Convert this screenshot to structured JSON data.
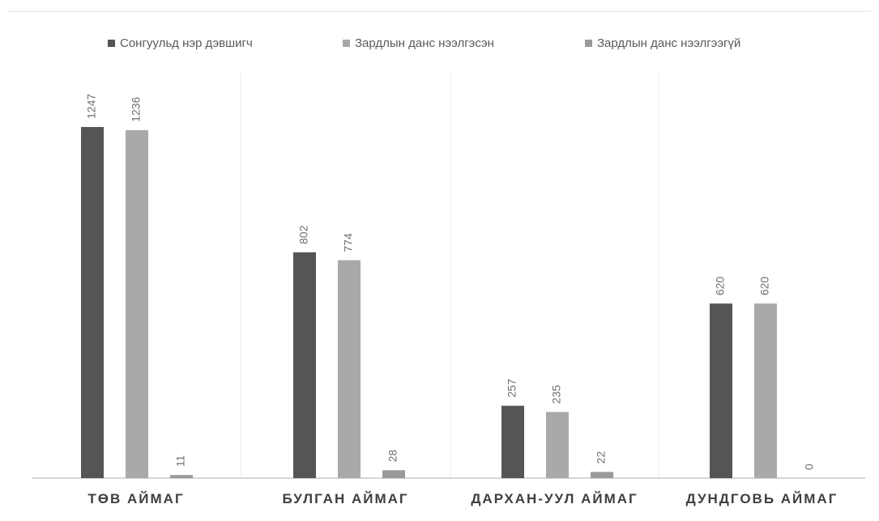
{
  "chart_data": {
    "type": "bar",
    "title": "",
    "xlabel": "",
    "ylabel": "",
    "ylim": [
      0,
      1300
    ],
    "grid": false,
    "legend_position": "top",
    "categories": [
      "ТӨВ АЙМАГ",
      "БУЛГАН АЙМАГ",
      "ДАРХАН-УУЛ АЙМАГ",
      "ДУНДГОВЬ АЙМАГ"
    ],
    "series": [
      {
        "name": "Сонгуульд нэр дэвшигч",
        "values": [
          1247,
          802,
          257,
          620
        ],
        "color": "#555555"
      },
      {
        "name": "Зардлын данс нээлгэсэн",
        "values": [
          1236,
          774,
          235,
          620
        ],
        "color": "#a9a9a9"
      },
      {
        "name": "Зардлын данс нээлгээгүй",
        "values": [
          11,
          28,
          22,
          0
        ],
        "color": "#9a9a9a"
      }
    ],
    "data_labels": [
      [
        "1247",
        "1236",
        "11"
      ],
      [
        "802",
        "774",
        "28"
      ],
      [
        "257",
        "235",
        "22"
      ],
      [
        "620",
        "620",
        "0"
      ]
    ]
  }
}
